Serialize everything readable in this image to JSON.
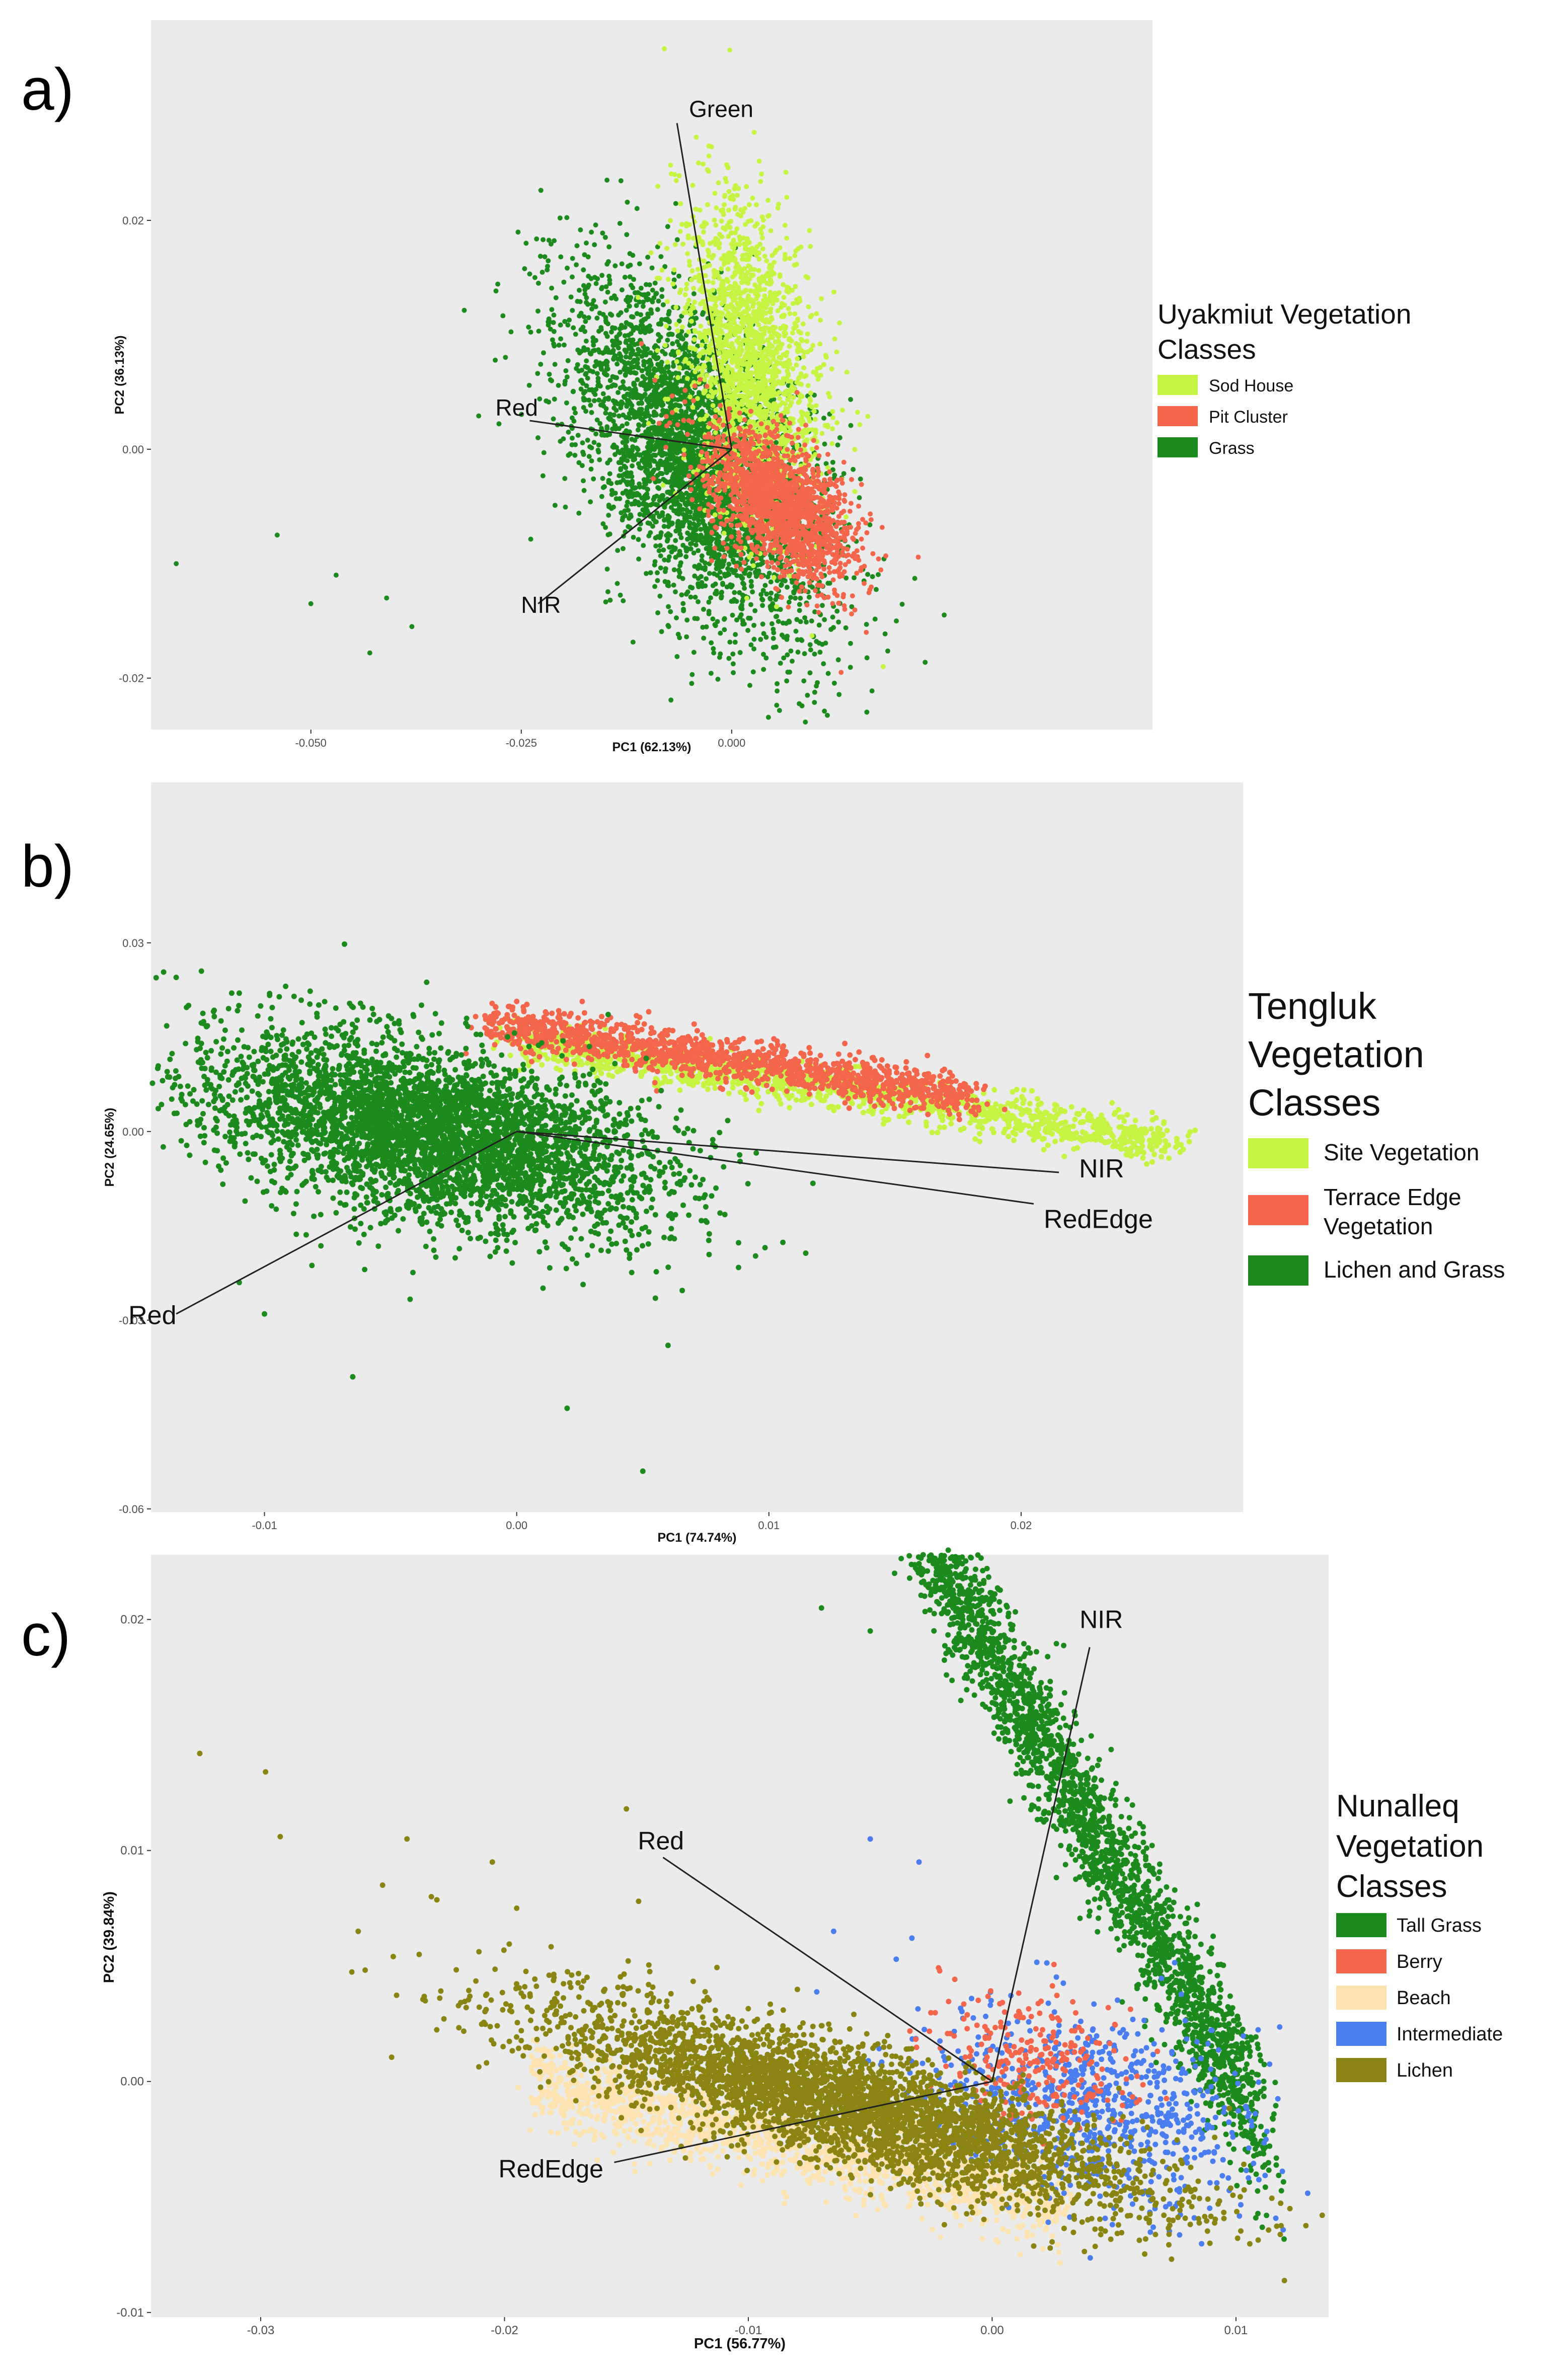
{
  "chart_data": [
    {
      "type": "scatter",
      "panel_label": "a)",
      "xlabel": "PC1 (62.13%)",
      "ylabel": "PC2 (36.13%)",
      "xlim": [
        -0.069,
        0.05
      ],
      "ylim": [
        -0.0245,
        0.0375
      ],
      "xticks": [
        -0.05,
        -0.025,
        0.0
      ],
      "xtick_labels": [
        "-0.050",
        "-0.025",
        "0.000"
      ],
      "yticks": [
        -0.02,
        0.0,
        0.02
      ],
      "ytick_labels": [
        "-0.02",
        "0.00",
        "0.02"
      ],
      "grid": false,
      "legend": {
        "title": [
          "Uyakmiut Vegetation",
          "Classes"
        ],
        "position": "right",
        "entries": [
          {
            "label": "Sod House",
            "color": "#c5f542"
          },
          {
            "label": "Pit Cluster",
            "color": "#f4664b"
          },
          {
            "label": "Grass",
            "color": "#1d8a1d"
          }
        ]
      },
      "vectors": [
        {
          "label": "Green",
          "end": [
            -0.0065,
            0.0285
          ]
        },
        {
          "label": "Red",
          "end": [
            -0.024,
            0.0025
          ]
        },
        {
          "label": "NIR",
          "end": [
            -0.023,
            -0.0135
          ]
        }
      ],
      "series": [
        {
          "name": "Grass",
          "color": "#1d8a1d",
          "n": 3800,
          "center": [
            -0.004,
            -0.001
          ],
          "sd": [
            0.0075,
            0.0075
          ],
          "corr": -0.55,
          "extra": [
            [
              -0.066,
              -0.01
            ],
            [
              -0.054,
              -0.0075
            ],
            [
              -0.05,
              -0.0135
            ],
            [
              -0.047,
              -0.011
            ],
            [
              -0.043,
              -0.0178
            ],
            [
              -0.041,
              -0.013
            ],
            [
              -0.038,
              -0.0155
            ],
            [
              0.009,
              -0.0215
            ]
          ]
        },
        {
          "name": "Sod House",
          "color": "#c5f542",
          "n": 1900,
          "center": [
            0.002,
            0.008
          ],
          "sd": [
            0.004,
            0.007
          ],
          "corr": -0.35,
          "extra": [
            [
              -0.008,
              0.035
            ],
            [
              0.018,
              -0.019
            ]
          ]
        },
        {
          "name": "Pit Cluster",
          "color": "#f4664b",
          "n": 1700,
          "center": [
            0.006,
            -0.005
          ],
          "sd": [
            0.0045,
            0.0035
          ],
          "corr": -0.55,
          "extra": [
            [
              0.016,
              -0.016
            ],
            [
              0.013,
              -0.0195
            ]
          ]
        }
      ]
    },
    {
      "type": "scatter",
      "panel_label": "b)",
      "xlabel": "PC1 (74.74%)",
      "ylabel": "PC2 (24.65%)",
      "xlim": [
        -0.0145,
        0.0288
      ],
      "ylim": [
        -0.0605,
        0.0555
      ],
      "xticks": [
        -0.01,
        0.0,
        0.01,
        0.02
      ],
      "xtick_labels": [
        "-0.01",
        "0.00",
        "0.01",
        "0.02"
      ],
      "yticks": [
        -0.06,
        -0.03,
        0.0,
        0.03
      ],
      "ytick_labels": [
        "-0.06",
        "-0.03",
        "0.00",
        "0.03"
      ],
      "grid": false,
      "legend": {
        "title": [
          "Tengluk",
          "Vegetation",
          "Classes"
        ],
        "position": "right",
        "entries": [
          {
            "label": "Site Vegetation",
            "color": "#c5f542"
          },
          {
            "label": [
              "Terrace Edge",
              "Vegetation"
            ],
            "color": "#f4664b"
          },
          {
            "label": "Lichen and Grass",
            "color": "#1d8a1d"
          }
        ]
      },
      "vectors": [
        {
          "label": "NIR",
          "end": [
            0.0215,
            -0.0065
          ]
        },
        {
          "label": "RedEdge",
          "end": [
            0.0205,
            -0.0115
          ]
        },
        {
          "label": "Red",
          "end": [
            -0.0135,
            -0.029
          ]
        }
      ],
      "series": [
        {
          "name": "Site Vegetation",
          "color": "#c5f542",
          "n": 1400,
          "line": {
            "x0": 0.0,
            "x1": 0.026,
            "a": 0.0145,
            "b": -0.62
          },
          "sd": 0.0017
        },
        {
          "name": "Terrace Edge Vegetation",
          "color": "#f4664b",
          "n": 1400,
          "line": {
            "x0": -0.001,
            "x1": 0.018,
            "a": 0.0165,
            "b": -0.62
          },
          "sd": 0.0017
        },
        {
          "name": "Lichen and Grass",
          "color": "#1d8a1d",
          "n": 4200,
          "center": [
            -0.0035,
            0.0
          ],
          "sd": [
            0.0045,
            0.0075
          ],
          "corr": -0.45,
          "extra": [
            [
              -0.0135,
              0.0245
            ],
            [
              -0.0125,
              0.0255
            ],
            [
              -0.011,
              0.022
            ],
            [
              -0.0125,
              0.014
            ],
            [
              -0.01,
              -0.029
            ],
            [
              -0.011,
              -0.024
            ],
            [
              -0.0065,
              -0.039
            ],
            [
              0.002,
              -0.044
            ],
            [
              0.006,
              -0.034
            ],
            [
              0.005,
              -0.054
            ],
            [
              0.0055,
              -0.0265
            ]
          ]
        }
      ]
    },
    {
      "type": "scatter",
      "panel_label": "c)",
      "xlabel": "PC1 (56.77%)",
      "ylabel": "PC2 (39.84%)",
      "xlim": [
        -0.0345,
        0.0138
      ],
      "ylim": [
        -0.0102,
        0.0228
      ],
      "xticks": [
        -0.03,
        -0.02,
        -0.01,
        0.0,
        0.01
      ],
      "xtick_labels": [
        "-0.03",
        "-0.02",
        "-0.01",
        "0.00",
        "0.01"
      ],
      "yticks": [
        -0.01,
        0.0,
        0.01,
        0.02
      ],
      "ytick_labels": [
        "-0.01",
        "0.00",
        "0.01",
        "0.02"
      ],
      "grid": false,
      "legend": {
        "title": [
          "Nunalleq",
          "Vegetation",
          "Classes"
        ],
        "position": "right",
        "entries": [
          {
            "label": "Tall Grass",
            "color": "#1d8a1d"
          },
          {
            "label": "Berry",
            "color": "#f4664b"
          },
          {
            "label": "Beach",
            "color": "#fde3b0"
          },
          {
            "label": "Intermediate",
            "color": "#4a7df0"
          },
          {
            "label": "Lichen",
            "color": "#8a8412"
          }
        ]
      },
      "vectors": [
        {
          "label": "NIR",
          "end": [
            0.004,
            0.0188
          ]
        },
        {
          "label": "Red",
          "end": [
            -0.0135,
            0.0097
          ]
        },
        {
          "label": "RedEdge",
          "end": [
            -0.0155,
            -0.0035
          ]
        }
      ],
      "series": [
        {
          "name": "Beach",
          "color": "#fde3b0",
          "n": 1500,
          "line": {
            "x0": -0.019,
            "x1": 0.003,
            "a": -0.0046,
            "b": -0.24
          },
          "sd": 0.0009
        },
        {
          "name": "Tall Grass",
          "color": "#1d8a1d",
          "n": 2600,
          "line": {
            "x0": -0.0035,
            "x1": 0.011,
            "a": 0.0186,
            "b": -1.85
          },
          "sd": 0.0016,
          "extra": [
            [
              -0.007,
              0.0205
            ],
            [
              -0.004,
              0.022
            ],
            [
              -0.0018,
              0.023
            ],
            [
              -0.005,
              0.0195
            ]
          ]
        },
        {
          "name": "Intermediate",
          "color": "#4a7df0",
          "n": 800,
          "center": [
            0.004,
            -0.001
          ],
          "sd": [
            0.0035,
            0.0022
          ],
          "corr": -0.35,
          "extra": [
            [
              -0.005,
              0.0105
            ],
            [
              -0.003,
              0.0095
            ],
            [
              -0.0065,
              0.0065
            ]
          ]
        },
        {
          "name": "Berry",
          "color": "#f4664b",
          "n": 250,
          "center": [
            0.002,
            0.001
          ],
          "sd": [
            0.002,
            0.0015
          ],
          "corr": -0.3
        },
        {
          "name": "Lichen",
          "color": "#8a8412",
          "n": 3800,
          "center": [
            -0.006,
            -0.001
          ],
          "sd": [
            0.0062,
            0.0022
          ],
          "corr": -0.82,
          "extra": [
            [
              -0.0325,
              0.0142
            ],
            [
              -0.0298,
              0.0134
            ],
            [
              -0.0292,
              0.0106
            ],
            [
              -0.026,
              0.0065
            ],
            [
              -0.025,
              0.0085
            ],
            [
              -0.024,
              0.0105
            ],
            [
              -0.023,
              0.008
            ],
            [
              -0.0235,
              0.0055
            ],
            [
              -0.0205,
              0.0095
            ],
            [
              -0.0195,
              0.0075
            ],
            [
              -0.015,
              0.0118
            ],
            [
              -0.0145,
              0.0078
            ]
          ]
        }
      ]
    }
  ]
}
